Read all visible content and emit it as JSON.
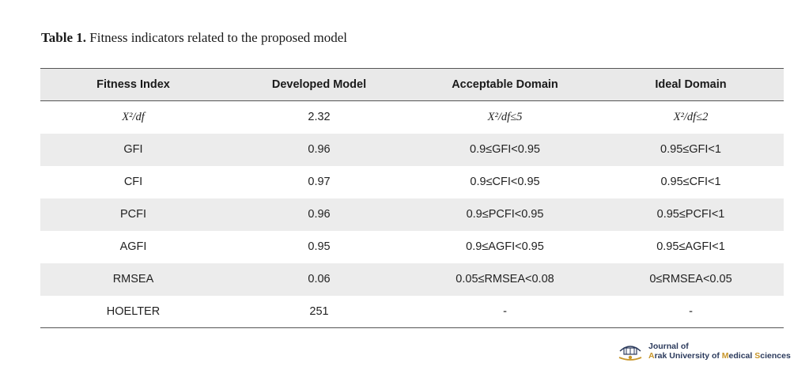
{
  "caption": {
    "label": "Table 1.",
    "text": " Fitness indicators related to the proposed model"
  },
  "table": {
    "headers": [
      "Fitness Index",
      "Developed Model",
      "Acceptable Domain",
      "Ideal Domain"
    ],
    "rows": [
      [
        "X²/df",
        "2.32",
        "X²/df≤5",
        "X²/df≤2"
      ],
      [
        "GFI",
        "0.96",
        "0.9≤GFI<0.95",
        "0.95≤GFI<1"
      ],
      [
        "CFI",
        "0.97",
        "0.9≤CFI<0.95",
        "0.95≤CFI<1"
      ],
      [
        "PCFI",
        "0.96",
        "0.9≤PCFI<0.95",
        "0.95≤PCFI<1"
      ],
      [
        "AGFI",
        "0.95",
        "0.9≤AGFI<0.95",
        "0.95≤AGFI<1"
      ],
      [
        "RMSEA",
        "0.06",
        "0.05≤RMSEA<0.08",
        "0≤RMSEA<0.05"
      ],
      [
        "HOELTER",
        "251",
        "-",
        "-"
      ]
    ]
  },
  "logo": {
    "line1": "Journal of",
    "line2_parts": [
      "A",
      "rak University of ",
      "M",
      "edical ",
      "S",
      "ciences"
    ]
  }
}
